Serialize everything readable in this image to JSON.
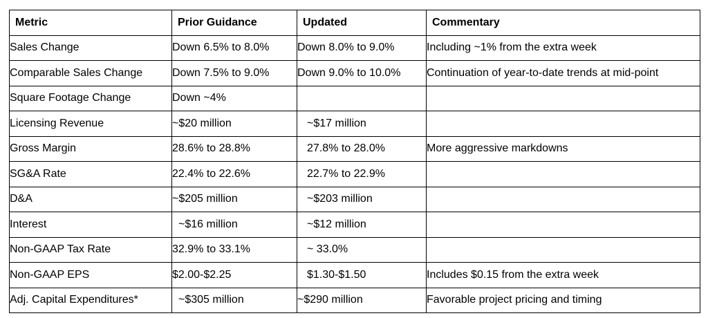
{
  "table": {
    "headers": {
      "metric": "Metric",
      "prior": "Prior Guidance",
      "updated": "Updated",
      "commentary": "Commentary"
    },
    "rows": [
      {
        "metric": "Sales Change",
        "prior": "Down 6.5% to 8.0%",
        "updated": "Down 8.0% to 9.0%",
        "commentary": "Including ~1% from the extra week"
      },
      {
        "metric": "Comparable Sales Change",
        "prior": "Down 7.5% to 9.0%",
        "updated": "Down 9.0% to 10.0%",
        "commentary": "Continuation of year-to-date trends at mid-point"
      },
      {
        "metric": "Square Footage Change",
        "prior": "Down ~4%",
        "updated": "",
        "commentary": ""
      },
      {
        "metric": "Licensing Revenue",
        "prior": "~$20 million",
        "updated": "~$17 million",
        "commentary": ""
      },
      {
        "metric": "Gross Margin",
        "prior": "28.6% to 28.8%",
        "updated": "27.8% to 28.0%",
        "commentary": "More aggressive markdowns"
      },
      {
        "metric": "SG&A Rate",
        "prior": "22.4% to 22.6%",
        "updated": "22.7% to 22.9%",
        "commentary": ""
      },
      {
        "metric": "D&A",
        "prior": "~$205 million",
        "updated": "~$203 million",
        "commentary": ""
      },
      {
        "metric": "Interest",
        "prior": "~$16 million",
        "updated": "~$12 million",
        "commentary": ""
      },
      {
        "metric": "Non-GAAP Tax Rate",
        "prior": "32.9% to 33.1%",
        "updated": "~ 33.0%",
        "commentary": ""
      },
      {
        "metric": "Non-GAAP EPS",
        "prior": "$2.00-$2.25",
        "updated": "$1.30-$1.50",
        "commentary": "Includes $0.15 from the extra week"
      },
      {
        "metric": "Adj. Capital Expenditures*",
        "prior": "~$305 million",
        "updated": "~$290 million",
        "commentary": "Favorable project pricing and timing"
      }
    ]
  }
}
